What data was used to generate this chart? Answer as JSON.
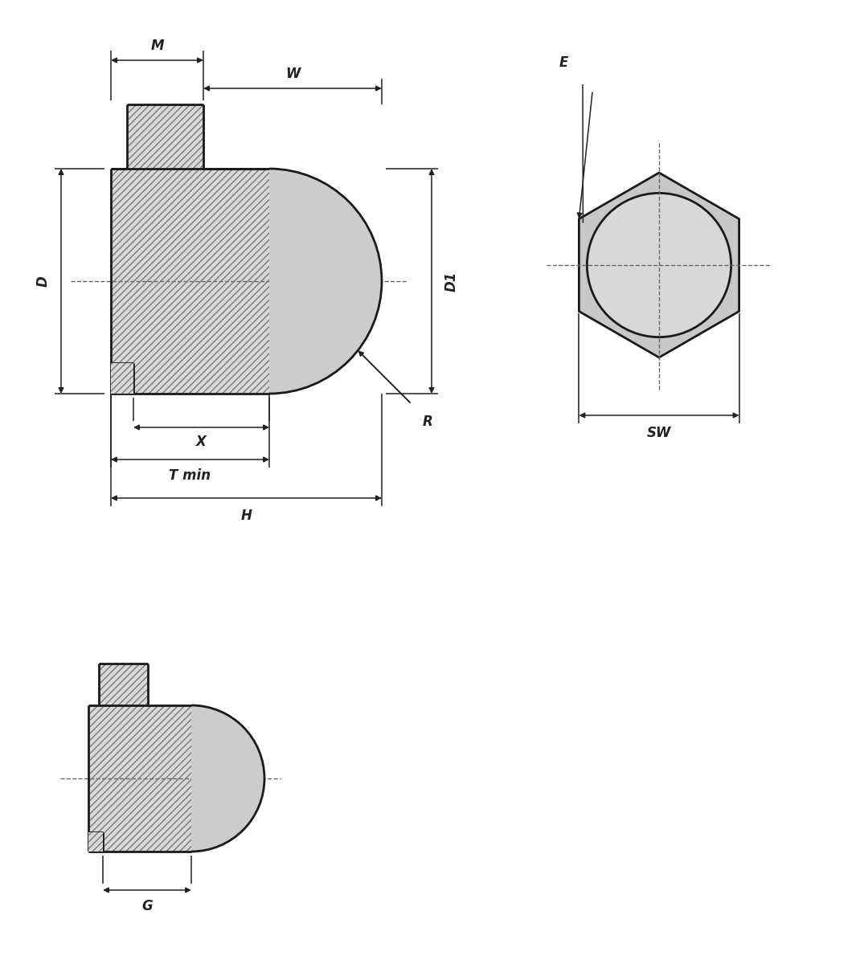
{
  "bg_color": "#ffffff",
  "line_color": "#1a1a1a",
  "fill_light": "#d8d8d8",
  "fill_dark": "#c0c0c0",
  "hatch_color": "#444444",
  "dim_color": "#222222",
  "dash_color": "#666666",
  "fig_width": 10.75,
  "fig_height": 12.0,
  "lw_main": 2.0,
  "lw_dim": 1.1,
  "lw_dash": 1.0,
  "fs_label": 12,
  "labels": {
    "M": "M",
    "W": "W",
    "D": "D",
    "D1": "D1",
    "R": "R",
    "X": "X",
    "T_min": "T min",
    "H": "H",
    "E": "E",
    "SW": "SW",
    "G": "G"
  }
}
